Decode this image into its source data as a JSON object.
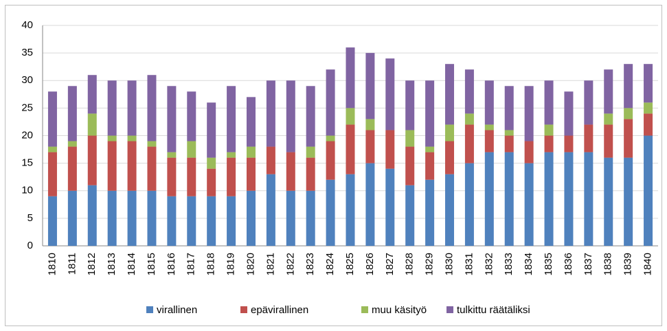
{
  "chart_data": {
    "type": "bar",
    "stacked": true,
    "categories": [
      "1810",
      "1811",
      "1812",
      "1813",
      "1814",
      "1815",
      "1816",
      "1817",
      "1818",
      "1819",
      "1820",
      "1821",
      "1822",
      "1823",
      "1824",
      "1825",
      "1826",
      "1827",
      "1828",
      "1829",
      "1830",
      "1831",
      "1832",
      "1833",
      "1834",
      "1835",
      "1836",
      "1837",
      "1838",
      "1839",
      "1840"
    ],
    "series": [
      {
        "name": "virallinen",
        "color": "#4f81bd",
        "values": [
          9,
          10,
          11,
          10,
          10,
          10,
          9,
          9,
          9,
          9,
          10,
          13,
          10,
          10,
          12,
          13,
          15,
          14,
          11,
          12,
          13,
          15,
          17,
          17,
          15,
          17,
          17,
          17,
          16,
          16,
          20
        ]
      },
      {
        "name": "epävirallinen",
        "color": "#c0504d",
        "values": [
          8,
          8,
          9,
          9,
          9,
          8,
          7,
          7,
          5,
          7,
          6,
          5,
          7,
          6,
          7,
          9,
          6,
          7,
          7,
          5,
          6,
          7,
          4,
          3,
          4,
          3,
          3,
          5,
          6,
          7,
          4
        ]
      },
      {
        "name": "muu käsityö",
        "color": "#9bbb59",
        "values": [
          1,
          1,
          4,
          1,
          1,
          1,
          1,
          3,
          2,
          1,
          2,
          0,
          0,
          2,
          1,
          3,
          2,
          0,
          3,
          1,
          3,
          2,
          1,
          1,
          0,
          2,
          0,
          0,
          2,
          2,
          2
        ]
      },
      {
        "name": "tulkittu räätäliksi",
        "color": "#8064a2",
        "values": [
          10,
          10,
          7,
          10,
          10,
          12,
          12,
          9,
          10,
          12,
          9,
          12,
          13,
          11,
          12,
          11,
          12,
          13,
          9,
          12,
          11,
          8,
          8,
          8,
          10,
          8,
          8,
          8,
          8,
          8,
          7
        ]
      }
    ],
    "ylim": [
      0,
      40
    ],
    "yticks": [
      0,
      5,
      10,
      15,
      20,
      25,
      30,
      35,
      40
    ],
    "grid": true,
    "legend": "bottom"
  }
}
